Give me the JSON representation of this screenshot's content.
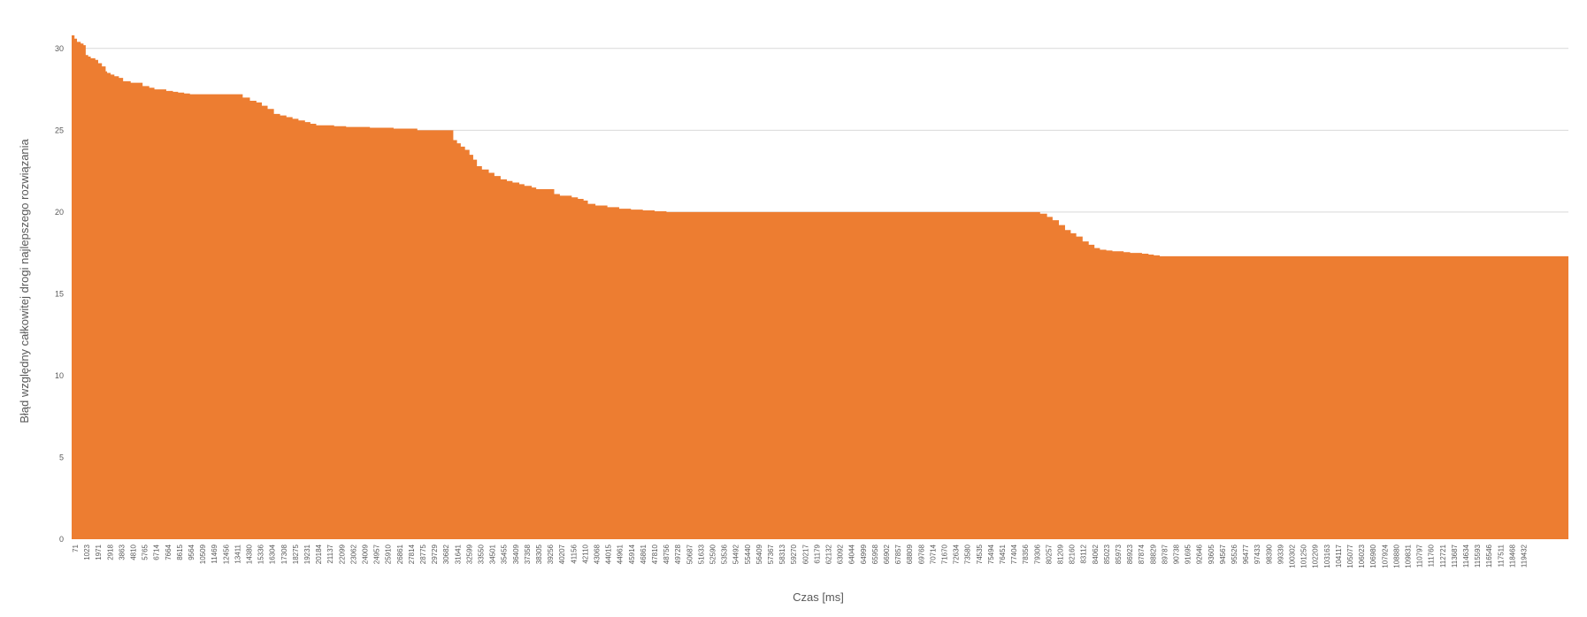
{
  "chart_data": {
    "type": "area",
    "title": "",
    "xlabel": "Czas [ms]",
    "ylabel": "Błąd względny całkowitej drogi najlepszego rozwiązania",
    "ylim": [
      0,
      30
    ],
    "yticks": [
      0,
      5,
      10,
      15,
      20,
      25,
      30
    ],
    "grid": true,
    "legend": "none",
    "colors": {
      "area": "#ED7D31",
      "grid": "#D9D9D9",
      "text": "#595959"
    },
    "x_range": [
      71,
      120200
    ],
    "x_tick_labels": [
      "71",
      "1023",
      "1971",
      "2918",
      "3863",
      "4810",
      "5765",
      "6714",
      "7664",
      "8615",
      "9564",
      "10509",
      "11469",
      "12456",
      "13411",
      "14380",
      "15336",
      "16304",
      "17308",
      "18275",
      "19231",
      "20184",
      "21137",
      "22099",
      "23062",
      "24009",
      "24957",
      "25910",
      "26861",
      "27814",
      "28775",
      "29729",
      "30682",
      "31641",
      "32599",
      "33550",
      "34501",
      "35455",
      "36409",
      "37358",
      "38305",
      "39256",
      "40207",
      "41156",
      "42110",
      "43068",
      "44015",
      "44961",
      "45914",
      "46861",
      "47810",
      "48756",
      "49728",
      "50687",
      "51633",
      "52590",
      "53536",
      "54492",
      "55440",
      "56409",
      "57367",
      "58313",
      "59270",
      "60217",
      "61179",
      "62132",
      "63092",
      "64044",
      "64999",
      "65958",
      "66902",
      "67857",
      "68809",
      "69768",
      "70714",
      "71670",
      "72634",
      "73580",
      "74535",
      "75494",
      "76451",
      "77404",
      "78356",
      "79306",
      "80257",
      "81209",
      "82160",
      "83112",
      "84062",
      "85023",
      "85973",
      "86923",
      "87874",
      "88829",
      "89787",
      "90738",
      "91695",
      "92646",
      "93605",
      "94567",
      "95526",
      "96477",
      "97433",
      "98390",
      "99339",
      "100302",
      "101250",
      "102209",
      "103163",
      "104117",
      "105077",
      "106023",
      "106980",
      "107924",
      "108880",
      "109831",
      "110797",
      "111760",
      "112721",
      "113687",
      "114634",
      "115593",
      "116546",
      "117511",
      "118468",
      "119432"
    ],
    "series": [
      {
        "x": [
          71,
          300,
          500,
          800,
          1023,
          1200,
          1400,
          1600,
          1971,
          2200,
          2500,
          2800,
          2918,
          3200,
          3500,
          3863,
          4200,
          4810,
          5200,
          5765,
          6300,
          6714,
          7200,
          7664,
          8200,
          8615,
          9100,
          9564,
          10509,
          11469,
          12456,
          13200,
          13411,
          13800,
          14380,
          14900,
          15336,
          15800,
          16304,
          16800,
          17308,
          17800,
          18275,
          18800,
          19231,
          19700,
          20184,
          21137,
          22099,
          23062,
          24009,
          24957,
          25910,
          26861,
          27814,
          28775,
          29729,
          30680,
          30700,
          31000,
          31300,
          31641,
          32000,
          32300,
          32599,
          33000,
          33550,
          34000,
          34501,
          35000,
          35455,
          36000,
          36409,
          37000,
          37358,
          38305,
          38800,
          39256,
          40207,
          40700,
          41156,
          41500,
          42110,
          43068,
          44015,
          44961,
          45914,
          46861,
          47810,
          48756,
          49728,
          50687,
          55440,
          60217,
          65958,
          70714,
          75494,
          77404,
          77800,
          78356,
          78800,
          79306,
          79800,
          80257,
          80700,
          81209,
          81700,
          82160,
          82600,
          83112,
          83600,
          84062,
          84500,
          85023,
          85973,
          86500,
          86923,
          87400,
          87874,
          88829,
          95526,
          105077,
          115593,
          119432,
          120200
        ],
        "values": [
          30.8,
          30.6,
          30.4,
          30.3,
          30.2,
          29.6,
          29.5,
          29.4,
          29.3,
          29.1,
          28.9,
          28.6,
          28.5,
          28.4,
          28.3,
          28.2,
          28.0,
          27.9,
          27.9,
          27.7,
          27.6,
          27.5,
          27.5,
          27.4,
          27.35,
          27.3,
          27.25,
          27.2,
          27.2,
          27.2,
          27.2,
          27.2,
          27.2,
          27.0,
          26.8,
          26.7,
          26.5,
          26.3,
          26.0,
          25.9,
          25.8,
          25.7,
          25.6,
          25.5,
          25.4,
          25.3,
          25.3,
          25.25,
          25.2,
          25.2,
          25.15,
          25.15,
          25.1,
          25.1,
          25.0,
          25.0,
          25.0,
          25.0,
          24.4,
          24.2,
          24.0,
          23.8,
          23.5,
          23.2,
          22.8,
          22.6,
          22.4,
          22.2,
          22.0,
          21.9,
          21.8,
          21.7,
          21.6,
          21.5,
          21.4,
          21.4,
          21.1,
          21.0,
          20.9,
          20.8,
          20.7,
          20.5,
          20.4,
          20.3,
          20.2,
          20.15,
          20.1,
          20.05,
          20.0,
          20.0,
          20.0,
          20.0,
          20.0,
          20.0,
          20.0,
          20.0,
          20.0,
          20.0,
          19.9,
          19.7,
          19.5,
          19.2,
          18.9,
          18.7,
          18.5,
          18.2,
          18.0,
          17.8,
          17.7,
          17.65,
          17.6,
          17.6,
          17.55,
          17.5,
          17.45,
          17.4,
          17.35,
          17.3,
          17.3,
          17.3,
          17.3,
          17.3,
          17.3,
          17.3,
          17.3
        ]
      }
    ]
  }
}
